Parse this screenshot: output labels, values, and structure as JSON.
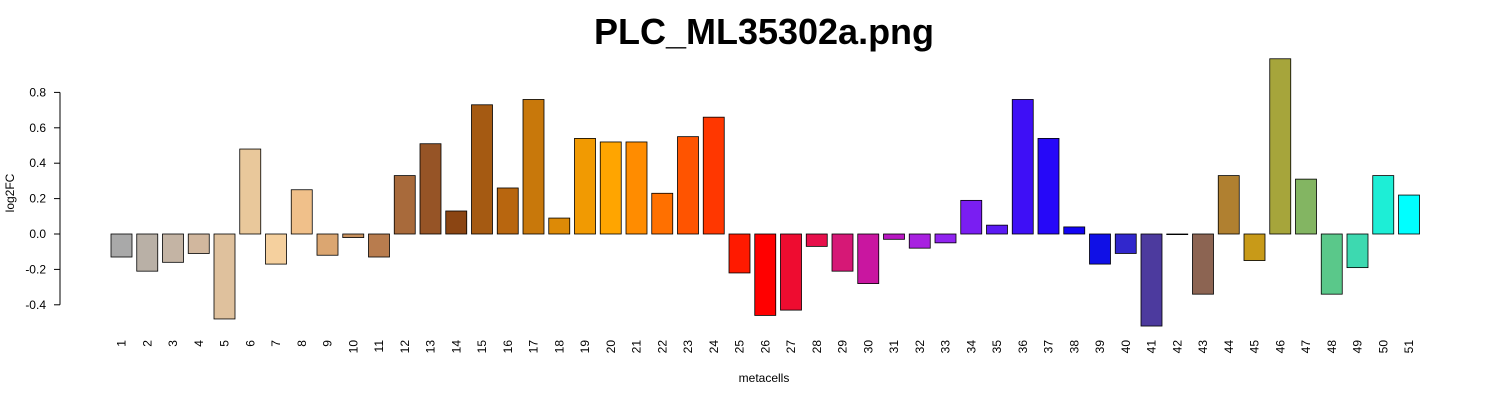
{
  "chart_data": {
    "type": "bar",
    "title": "PLC_ML35302a.png",
    "xlabel": "metacells",
    "ylabel": "log2FC",
    "ylim": [
      -0.52,
      1.0
    ],
    "yticks": [
      -0.4,
      -0.2,
      0.0,
      0.2,
      0.4,
      0.6,
      0.8
    ],
    "ytick_labels": [
      "-0.4",
      "-0.2",
      "0.0",
      "0.2",
      "0.4",
      "0.6",
      "0.8"
    ],
    "grid": false,
    "legend": "none",
    "categories": [
      "1",
      "2",
      "3",
      "4",
      "5",
      "6",
      "7",
      "8",
      "9",
      "10",
      "11",
      "12",
      "13",
      "14",
      "15",
      "16",
      "17",
      "18",
      "19",
      "20",
      "21",
      "22",
      "23",
      "24",
      "25",
      "26",
      "27",
      "28",
      "29",
      "30",
      "31",
      "32",
      "33",
      "34",
      "35",
      "36",
      "37",
      "38",
      "39",
      "40",
      "41",
      "42",
      "43",
      "44",
      "45",
      "46",
      "47",
      "48",
      "49",
      "50",
      "51"
    ],
    "values": [
      -0.13,
      -0.21,
      -0.16,
      -0.11,
      -0.48,
      0.48,
      -0.17,
      0.25,
      -0.12,
      -0.02,
      -0.13,
      0.33,
      0.51,
      0.13,
      0.73,
      0.26,
      0.76,
      0.09,
      0.54,
      0.52,
      0.52,
      0.23,
      0.55,
      0.66,
      -0.22,
      -0.46,
      -0.43,
      -0.07,
      -0.21,
      -0.28,
      -0.03,
      -0.08,
      -0.05,
      0.19,
      0.05,
      0.76,
      0.54,
      0.04,
      -0.17,
      -0.11,
      -0.52,
      0.0,
      -0.34,
      0.33,
      -0.15,
      0.99,
      0.31,
      -0.34,
      -0.19,
      0.33,
      0.22
    ],
    "colors": [
      "#a9a9a9",
      "#b9b0a6",
      "#c4b4a4",
      "#d1b79e",
      "#dfc19d",
      "#e9c89b",
      "#f5d09e",
      "#f0c08a",
      "#dba671",
      "#c9925f",
      "#b87c4e",
      "#a86a3b",
      "#965426",
      "#8b4513",
      "#a55a12",
      "#b8660f",
      "#c8780b",
      "#dd8a06",
      "#f19a02",
      "#ffa500",
      "#ff8c00",
      "#ff7000",
      "#ff5400",
      "#ff3700",
      "#ff1a00",
      "#ff0000",
      "#ee0c30",
      "#e7104b",
      "#d61876",
      "#c916a0",
      "#b818c2",
      "#a821e0",
      "#9124f0",
      "#7a1ef2",
      "#5b1af4",
      "#3e0ff6",
      "#2608f8",
      "#1204f3",
      "#1010e6",
      "#3127cc",
      "#4c3a9e",
      "#6d4e7e",
      "#8c6452",
      "#b08030",
      "#c89a18",
      "#a6a53b",
      "#83b562",
      "#5ac88a",
      "#3dd9b0",
      "#1deed6",
      "#00ffff"
    ]
  }
}
